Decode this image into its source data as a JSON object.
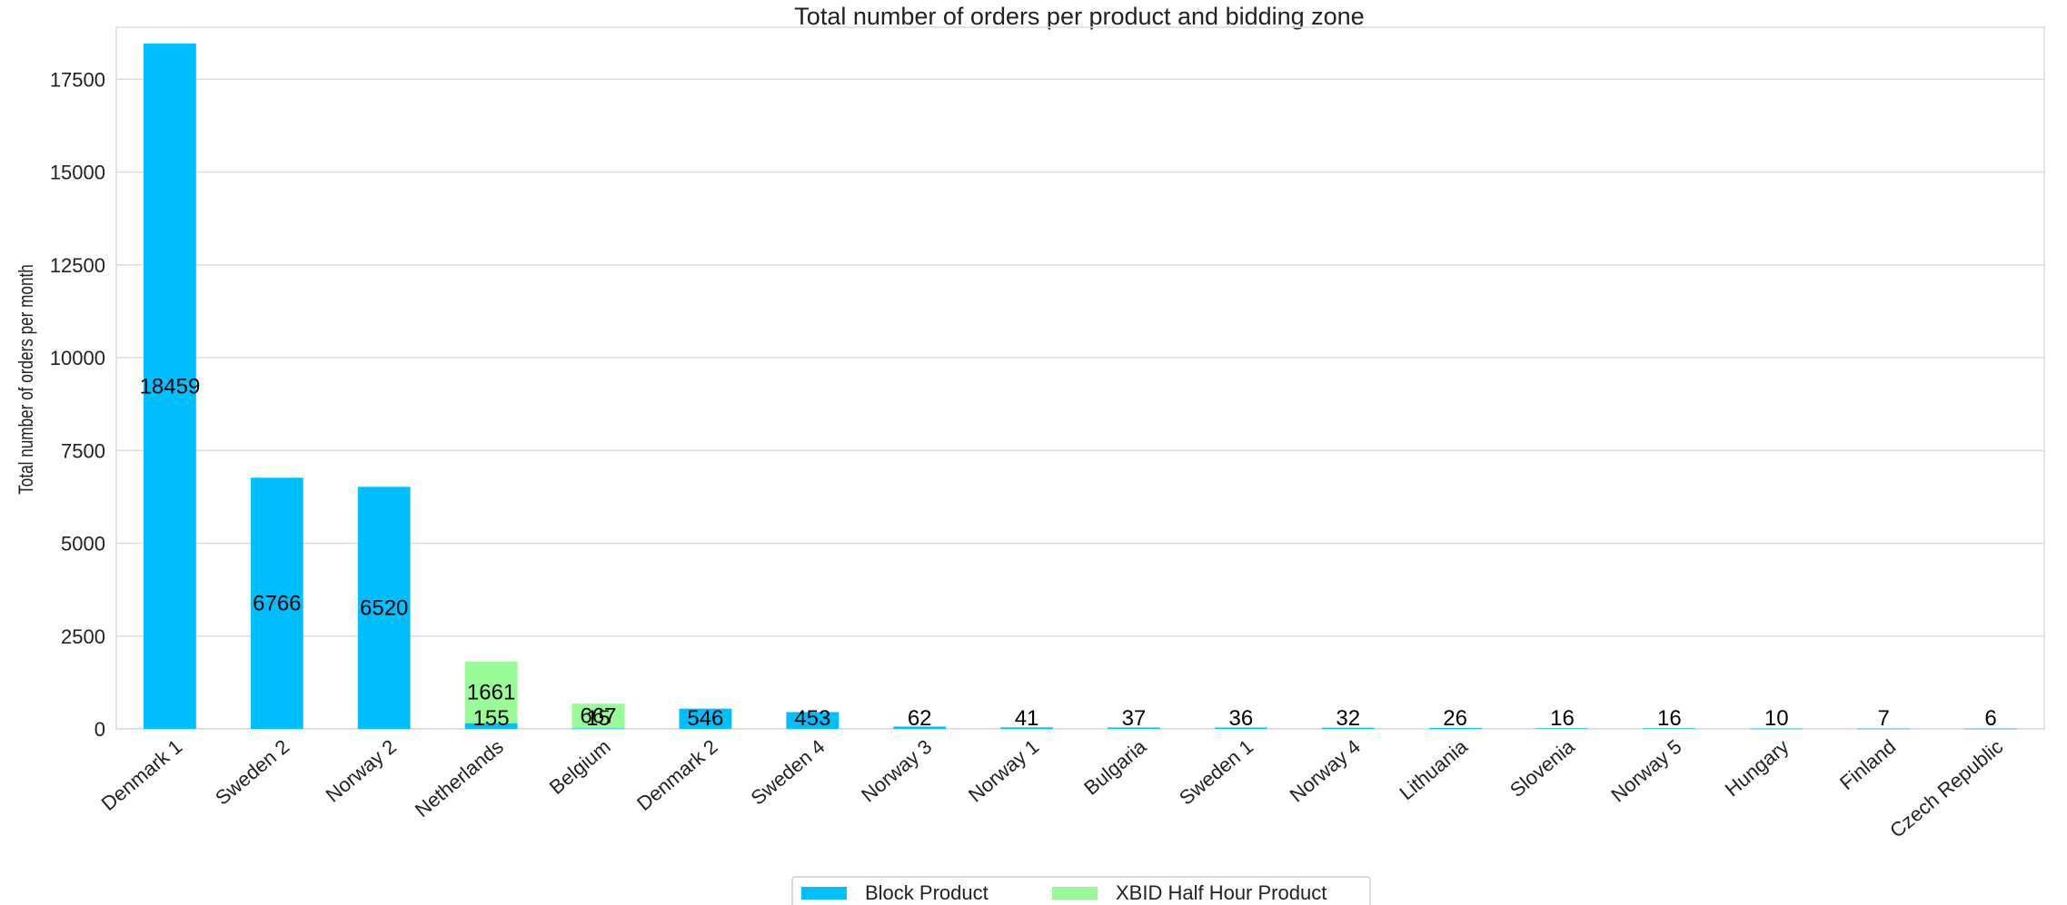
{
  "chart_data": {
    "type": "bar",
    "stacked": true,
    "title": "Total number of orders per product and bidding zone",
    "xlabel": "",
    "ylabel": "Total number of orders per month",
    "ylim": [
      0,
      18900
    ],
    "yticks": [
      "0",
      "2500",
      "5000",
      "7500",
      "10000",
      "12500",
      "15000",
      "17500"
    ],
    "grid": "horizontal",
    "legend_position": "bottom-center",
    "categories": [
      "Denmark 1",
      "Sweden 2",
      "Norway 2",
      "Netherlands",
      "Belgium",
      "Denmark 2",
      "Sweden 4",
      "Norway 3",
      "Norway 1",
      "Bulgaria",
      "Sweden 1",
      "Norway 4",
      "Lithuania",
      "Slovenia",
      "Norway 5",
      "Hungary",
      "Finland",
      "Czech Republic"
    ],
    "series": [
      {
        "name": "Block Product",
        "color": "#00bfff",
        "values": [
          18459,
          6766,
          6520,
          155,
          15,
          546,
          453,
          62,
          41,
          37,
          36,
          32,
          26,
          16,
          16,
          10,
          7,
          6
        ],
        "labels": [
          "18459",
          "6766",
          "6520",
          "155",
          "15",
          "546",
          "453",
          "62",
          "41",
          "37",
          "36",
          "32",
          "26",
          "16",
          "16",
          "10",
          "7",
          "6"
        ]
      },
      {
        "name": "XBID Half Hour Product",
        "color": "#98fb98",
        "values": [
          0,
          0,
          0,
          1661,
          667,
          0,
          0,
          0,
          0,
          0,
          0,
          0,
          0,
          0,
          0,
          0,
          0,
          0
        ],
        "labels": [
          "",
          "",
          "",
          "1661",
          "667",
          "",
          "",
          "",
          "",
          "",
          "",
          "",
          "",
          "",
          "",
          "",
          "",
          ""
        ]
      }
    ]
  }
}
